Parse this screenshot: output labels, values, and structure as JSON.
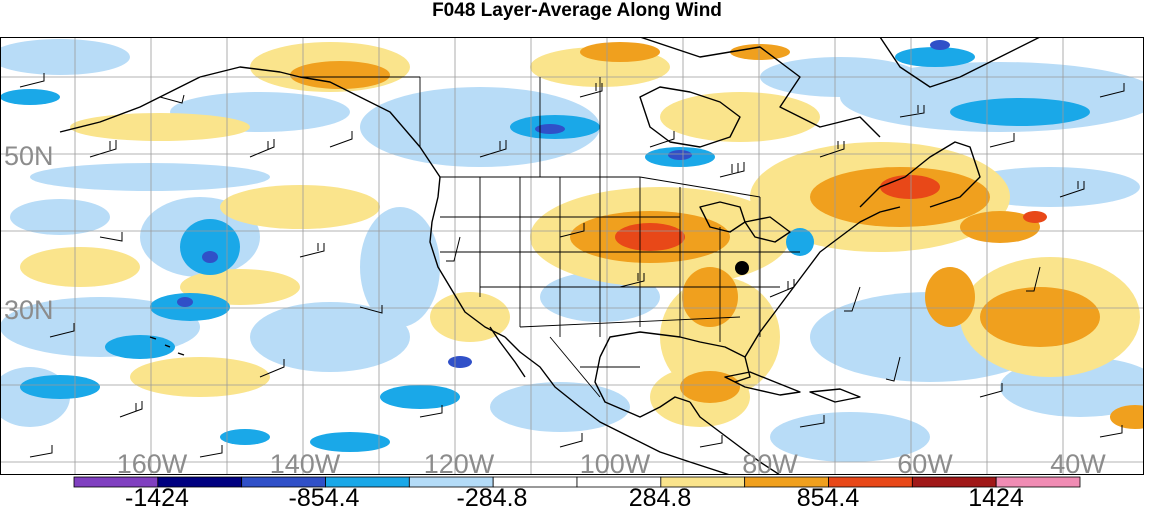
{
  "title": "F048 Layer-Average Along Wind",
  "map": {
    "projection": "lat-lon",
    "lon_range": [
      -180,
      -28
    ],
    "lat_range": [
      4,
      69
    ],
    "grid_lines": true,
    "lat_labels": [
      "50N",
      "30N"
    ],
    "lon_labels": [
      "160W",
      "140W",
      "120W",
      "100W",
      "80W",
      "60W",
      "40W"
    ],
    "marker": "black station dot over Georgia / South Carolina"
  },
  "colorbar": {
    "colors": [
      "#8040c0",
      "#000080",
      "#3050c8",
      "#1aa8e8",
      "#b4dcf8",
      "#ffffff",
      "#ffffff",
      "#fae48c",
      "#f0a01e",
      "#e84818",
      "#a01818",
      "#f08cb4"
    ],
    "labels": [
      "-1424",
      "-854.4",
      "-284.8",
      "284.8",
      "854.4",
      "1424"
    ]
  }
}
